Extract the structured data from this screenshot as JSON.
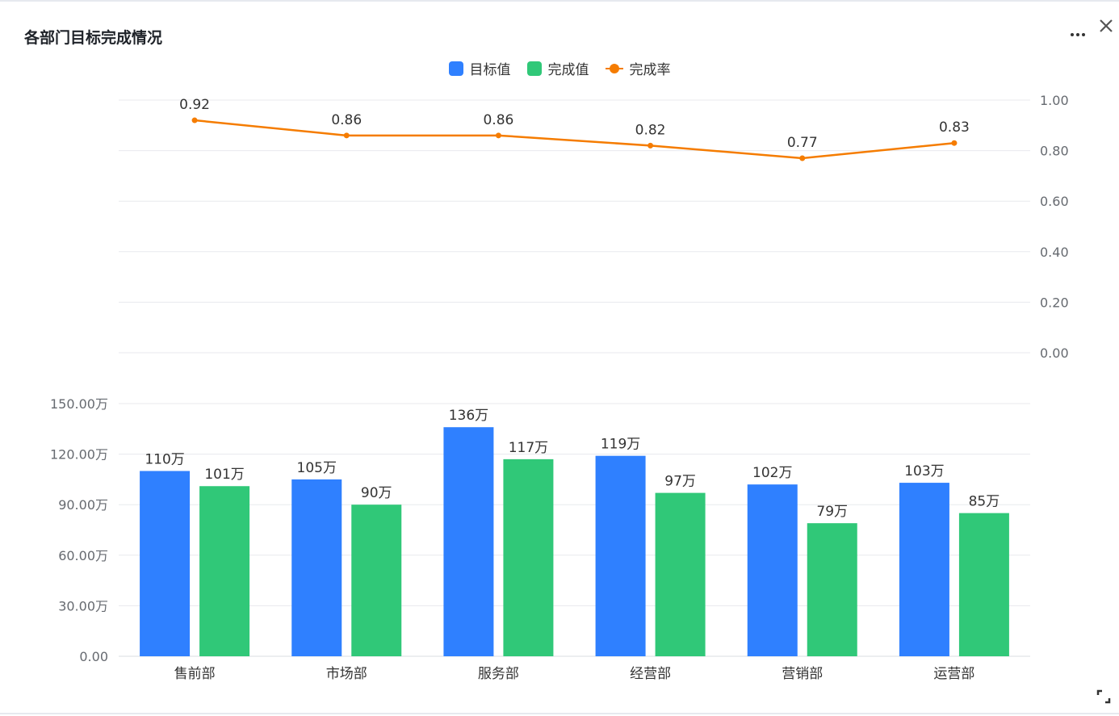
{
  "panel": {
    "title": "各部门目标完成情况"
  },
  "colors": {
    "target": "#2f80ff",
    "actual": "#30c878",
    "rate": "#f57c00",
    "grid": "#e8eaee",
    "axis_text": "#666a70"
  },
  "icons": {
    "more": "more-icon",
    "close": "close-icon",
    "expand": "expand-icon"
  },
  "chart_data": {
    "type": "bar",
    "categories": [
      "售前部",
      "市场部",
      "服务部",
      "经营部",
      "营销部",
      "运营部"
    ],
    "series": [
      {
        "name": "目标值",
        "kind": "bar",
        "values": [
          110,
          105,
          136,
          119,
          102,
          103
        ],
        "labels": [
          "110万",
          "105万",
          "136万",
          "119万",
          "102万",
          "103万"
        ]
      },
      {
        "name": "完成值",
        "kind": "bar",
        "values": [
          101,
          90,
          117,
          97,
          79,
          85
        ],
        "labels": [
          "101万",
          "90万",
          "117万",
          "97万",
          "79万",
          "85万"
        ]
      },
      {
        "name": "完成率",
        "kind": "line",
        "values": [
          0.92,
          0.86,
          0.86,
          0.82,
          0.77,
          0.83
        ],
        "labels": [
          "0.92",
          "0.86",
          "0.86",
          "0.82",
          "0.77",
          "0.83"
        ]
      }
    ],
    "bar_axis": {
      "ylim": [
        0,
        150
      ],
      "ticks": [
        0,
        30,
        60,
        90,
        120,
        150
      ],
      "tick_labels": [
        "0.00",
        "30.00万",
        "60.00万",
        "90.00万",
        "120.00万",
        "150.00万"
      ],
      "position": "left"
    },
    "rate_axis": {
      "ylim": [
        0,
        1
      ],
      "ticks": [
        0,
        0.2,
        0.4,
        0.6,
        0.8,
        1.0
      ],
      "tick_labels": [
        "0.00",
        "0.20",
        "0.40",
        "0.60",
        "0.80",
        "1.00"
      ],
      "position": "right"
    },
    "legend_position": "top-center",
    "grid": true
  }
}
